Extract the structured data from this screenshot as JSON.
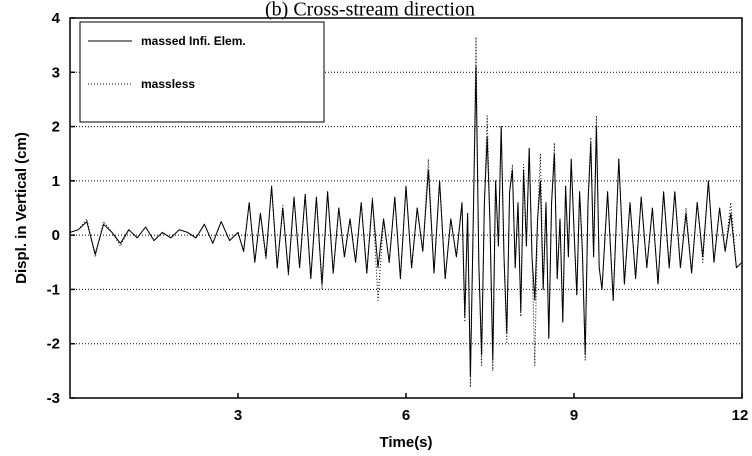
{
  "chart_data": {
    "type": "line",
    "title": "(b) Cross-stream direction",
    "xlabel": "Time(s)",
    "ylabel": "Displ. in Vertical (cm)",
    "xlim": [
      0,
      12
    ],
    "ylim": [
      -3,
      4
    ],
    "x_ticks": [
      3,
      6,
      9,
      12
    ],
    "y_ticks": [
      -3,
      -2,
      -1,
      0,
      1,
      2,
      3,
      4
    ],
    "grid": "horizontal dotted",
    "legend_position": "top-left",
    "series": [
      {
        "name": "massed Infi. Elem.",
        "style": "solid",
        "color": "#000000",
        "x": [
          0.0,
          0.15,
          0.3,
          0.45,
          0.6,
          0.75,
          0.9,
          1.05,
          1.2,
          1.35,
          1.5,
          1.65,
          1.8,
          1.95,
          2.1,
          2.25,
          2.4,
          2.55,
          2.7,
          2.85,
          3.0,
          3.1,
          3.2,
          3.3,
          3.4,
          3.5,
          3.6,
          3.7,
          3.8,
          3.9,
          4.0,
          4.1,
          4.2,
          4.3,
          4.4,
          4.5,
          4.6,
          4.7,
          4.8,
          4.9,
          5.0,
          5.1,
          5.2,
          5.3,
          5.4,
          5.5,
          5.6,
          5.7,
          5.8,
          5.9,
          6.0,
          6.1,
          6.2,
          6.3,
          6.4,
          6.5,
          6.6,
          6.7,
          6.8,
          6.9,
          7.0,
          7.05,
          7.1,
          7.15,
          7.2,
          7.25,
          7.3,
          7.35,
          7.4,
          7.45,
          7.5,
          7.55,
          7.6,
          7.65,
          7.7,
          7.75,
          7.8,
          7.85,
          7.9,
          7.95,
          8.0,
          8.05,
          8.1,
          8.15,
          8.2,
          8.25,
          8.3,
          8.35,
          8.4,
          8.45,
          8.5,
          8.55,
          8.6,
          8.65,
          8.7,
          8.75,
          8.8,
          8.85,
          8.9,
          8.95,
          9.0,
          9.05,
          9.1,
          9.15,
          9.2,
          9.25,
          9.3,
          9.35,
          9.4,
          9.45,
          9.5,
          9.6,
          9.7,
          9.8,
          9.9,
          10.0,
          10.1,
          10.2,
          10.3,
          10.4,
          10.5,
          10.6,
          10.7,
          10.8,
          10.9,
          11.0,
          11.1,
          11.2,
          11.3,
          11.4,
          11.5,
          11.6,
          11.7,
          11.8,
          11.9,
          12.0
        ],
        "y": [
          0.05,
          0.1,
          0.25,
          -0.35,
          0.2,
          0.05,
          -0.15,
          0.1,
          -0.05,
          0.15,
          -0.1,
          0.05,
          -0.05,
          0.1,
          0.05,
          -0.05,
          0.2,
          -0.15,
          0.25,
          -0.1,
          0.05,
          -0.3,
          0.6,
          -0.5,
          0.4,
          -0.4,
          0.9,
          -0.6,
          0.5,
          -0.7,
          0.7,
          -0.6,
          0.75,
          -0.8,
          0.7,
          -0.9,
          0.8,
          -0.7,
          0.5,
          -0.4,
          0.3,
          -0.5,
          0.6,
          -0.7,
          0.65,
          -0.6,
          0.3,
          -0.5,
          0.7,
          -0.8,
          0.9,
          -0.6,
          0.5,
          -0.3,
          1.2,
          -0.7,
          1.0,
          -0.8,
          0.3,
          -0.4,
          0.6,
          -1.5,
          0.4,
          -2.6,
          0.2,
          3.1,
          -0.5,
          -2.2,
          0.6,
          1.8,
          0.2,
          -2.3,
          1.0,
          -0.2,
          2.0,
          -0.4,
          -1.8,
          0.8,
          1.2,
          -0.6,
          0.6,
          -1.4,
          1.2,
          -0.2,
          1.6,
          -0.4,
          -1.2,
          0.3,
          1.0,
          -1.0,
          0.6,
          -1.9,
          0.6,
          1.5,
          -0.8,
          0.3,
          -1.6,
          0.9,
          -0.4,
          1.4,
          0.1,
          -1.1,
          0.8,
          -0.3,
          -2.2,
          0.6,
          1.7,
          -0.4,
          2.0,
          -0.6,
          -1.0,
          0.8,
          -1.2,
          1.4,
          -0.9,
          0.6,
          -0.8,
          0.7,
          -0.6,
          0.5,
          -0.9,
          0.8,
          -0.6,
          0.8,
          -0.6,
          0.4,
          -0.7,
          0.6,
          -0.4,
          1.0,
          -0.5,
          0.5,
          -0.3,
          0.4,
          -0.6,
          -0.5
        ]
      },
      {
        "name": "massless",
        "style": "dotted",
        "color": "#000000",
        "x": [
          0.0,
          0.15,
          0.3,
          0.45,
          0.6,
          0.75,
          0.9,
          1.05,
          1.2,
          1.35,
          1.5,
          1.65,
          1.8,
          1.95,
          2.1,
          2.25,
          2.4,
          2.55,
          2.7,
          2.85,
          3.0,
          3.1,
          3.2,
          3.3,
          3.4,
          3.5,
          3.6,
          3.7,
          3.8,
          3.9,
          4.0,
          4.1,
          4.2,
          4.3,
          4.4,
          4.5,
          4.6,
          4.7,
          4.8,
          4.9,
          5.0,
          5.1,
          5.2,
          5.3,
          5.4,
          5.5,
          5.6,
          5.7,
          5.8,
          5.9,
          6.0,
          6.1,
          6.2,
          6.3,
          6.4,
          6.5,
          6.6,
          6.7,
          6.8,
          6.9,
          7.0,
          7.05,
          7.1,
          7.15,
          7.2,
          7.25,
          7.3,
          7.35,
          7.4,
          7.45,
          7.5,
          7.55,
          7.6,
          7.65,
          7.7,
          7.75,
          7.8,
          7.85,
          7.9,
          7.95,
          8.0,
          8.05,
          8.1,
          8.15,
          8.2,
          8.25,
          8.3,
          8.35,
          8.4,
          8.45,
          8.5,
          8.55,
          8.6,
          8.65,
          8.7,
          8.75,
          8.8,
          8.85,
          8.9,
          8.95,
          9.0,
          9.05,
          9.1,
          9.15,
          9.2,
          9.25,
          9.3,
          9.35,
          9.4,
          9.45,
          9.5,
          9.6,
          9.7,
          9.8,
          9.9,
          10.0,
          10.1,
          10.2,
          10.3,
          10.4,
          10.5,
          10.6,
          10.7,
          10.8,
          10.9,
          11.0,
          11.1,
          11.2,
          11.3,
          11.4,
          11.5,
          11.6,
          11.7,
          11.8,
          11.9,
          12.0
        ],
        "y": [
          0.05,
          0.1,
          0.3,
          -0.4,
          0.25,
          0.05,
          -0.2,
          0.1,
          -0.05,
          0.15,
          -0.1,
          0.05,
          -0.05,
          0.1,
          0.05,
          -0.05,
          0.2,
          -0.15,
          0.25,
          -0.1,
          0.05,
          -0.3,
          0.6,
          -0.5,
          0.4,
          -0.45,
          0.9,
          -0.6,
          0.55,
          -0.75,
          0.7,
          -0.6,
          0.75,
          -0.8,
          0.7,
          -1.0,
          0.8,
          -0.7,
          0.5,
          -0.4,
          0.3,
          -0.5,
          0.6,
          -0.7,
          0.7,
          -1.2,
          0.3,
          -0.5,
          0.7,
          -0.8,
          0.9,
          -0.6,
          0.5,
          -0.3,
          1.4,
          -0.7,
          1.0,
          -0.8,
          0.3,
          -0.4,
          0.6,
          -1.6,
          0.4,
          -2.8,
          0.2,
          3.65,
          -0.5,
          -2.4,
          0.6,
          2.2,
          0.2,
          -2.5,
          1.0,
          -0.2,
          2.0,
          -0.4,
          -2.0,
          0.8,
          1.3,
          -0.6,
          0.6,
          -1.5,
          1.3,
          -0.2,
          1.6,
          -0.4,
          -2.4,
          0.3,
          1.5,
          -1.0,
          0.6,
          -1.9,
          0.6,
          1.7,
          -0.8,
          0.3,
          -1.6,
          0.9,
          -0.4,
          1.4,
          0.1,
          -1.1,
          0.8,
          -0.3,
          -2.3,
          0.6,
          1.8,
          -0.4,
          2.2,
          -0.6,
          -1.0,
          0.8,
          -1.2,
          1.4,
          -0.9,
          0.6,
          -0.8,
          0.7,
          -0.6,
          0.5,
          -0.9,
          0.8,
          -0.6,
          0.8,
          -0.6,
          0.5,
          -0.7,
          0.6,
          -0.5,
          1.0,
          -0.5,
          0.5,
          -0.3,
          0.6,
          -0.6,
          -0.5
        ]
      }
    ]
  }
}
